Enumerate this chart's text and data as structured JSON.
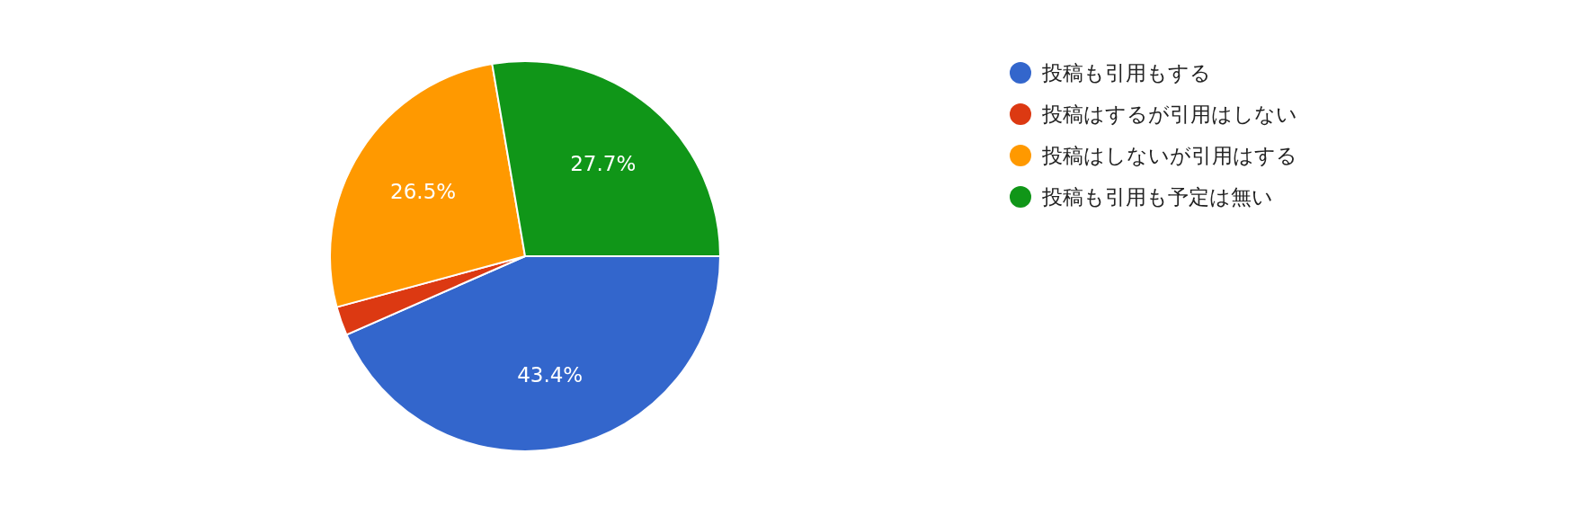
{
  "chart_data": {
    "type": "pie",
    "categories": [
      "投稿も引用もする",
      "投稿はするが引用はしない",
      "投稿はしないが引用はする",
      "投稿も引用も予定は無い"
    ],
    "values": [
      43.4,
      2.4,
      26.5,
      27.7
    ],
    "value_labels": [
      "43.4%",
      null,
      "26.5%",
      "27.7%"
    ],
    "colors": [
      "#3366cc",
      "#dc3912",
      "#ff9900",
      "#109618"
    ],
    "legend": "right"
  }
}
